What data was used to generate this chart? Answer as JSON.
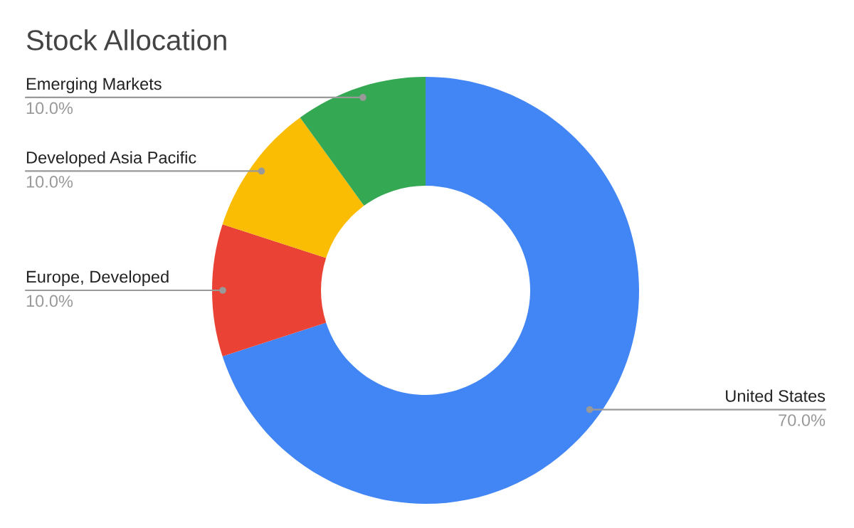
{
  "chart_data": {
    "type": "donut",
    "title": "Stock Allocation",
    "categories": [
      "United States",
      "Europe, Developed",
      "Developed Asia Pacific",
      "Emerging Markets"
    ],
    "values": [
      70,
      10,
      10,
      10
    ],
    "value_labels": [
      "70.0%",
      "10.0%",
      "10.0%",
      "10.0%"
    ],
    "colors": [
      "#4285f4",
      "#ea4335",
      "#fbbc04",
      "#34a853"
    ],
    "legend": false
  }
}
